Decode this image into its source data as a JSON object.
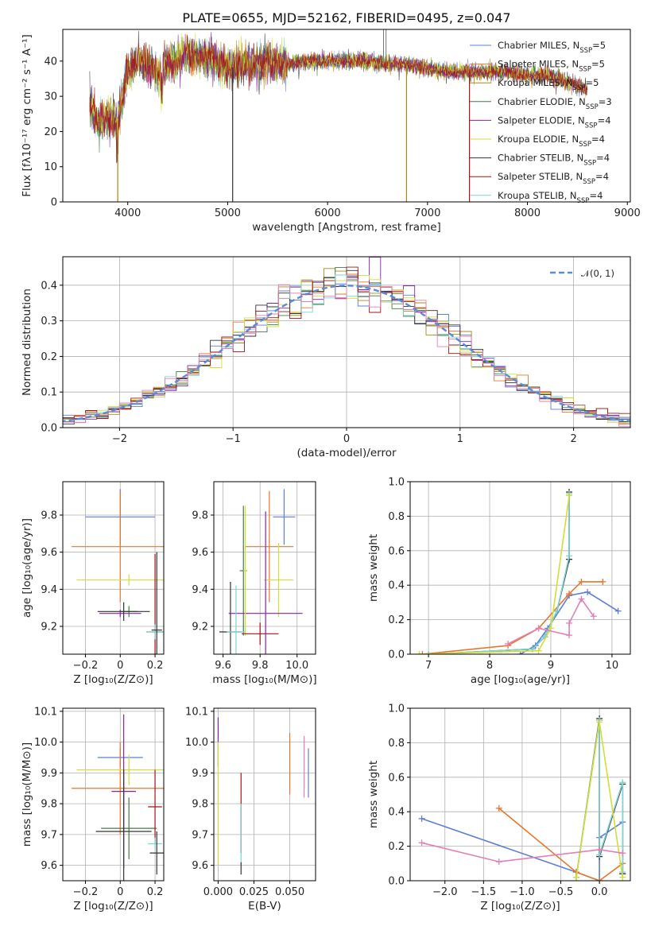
{
  "colors": [
    "#5b7fd8",
    "#e8762a",
    "#a68914",
    "#3f7d3f",
    "#8b1fb5",
    "#d2de38",
    "#333333",
    "#a31414",
    "#7ed3d3"
  ],
  "chart_data": [
    {
      "type": "line",
      "title": "PLATE=0655, MJD=52162, FIBERID=0495, z=0.047",
      "xlabel": "wavelength [Angstrom, rest frame]",
      "ylabel": "Flux [fλ10⁻¹⁷ erg cm⁻² s⁻¹ A⁻¹]",
      "xlim": [
        3350,
        9030
      ],
      "ylim": [
        0,
        49
      ],
      "xticks": [
        4000,
        5000,
        6000,
        7000,
        8000,
        9000
      ],
      "yticks": [
        0,
        10,
        20,
        30,
        40
      ],
      "legend_position": "top-right",
      "grid": false,
      "series": [
        {
          "name": "Chabrier MILES, N_SSP=5"
        },
        {
          "name": "Salpeter MILES, N_SSP=5"
        },
        {
          "name": "Kroupa MILES, N_SSP=5"
        },
        {
          "name": "Chabrier ELODIE, N_SSP=3"
        },
        {
          "name": "Salpeter ELODIE, N_SSP=4"
        },
        {
          "name": "Kroupa ELODIE, N_SSP=4"
        },
        {
          "name": "Chabrier STELIB, N_SSP=4"
        },
        {
          "name": "Salpeter STELIB, N_SSP=4"
        },
        {
          "name": "Kroupa STELIB, N_SSP=4"
        }
      ],
      "continuum": {
        "x": [
          3620,
          3700,
          3800,
          3900,
          3950,
          4000,
          4100,
          4200,
          4300,
          4400,
          4500,
          4600,
          4700,
          4800,
          4900,
          5000,
          5200,
          5400,
          5600,
          5800,
          6000,
          6200,
          6400,
          6600,
          6800,
          7000,
          7200,
          7400,
          7600,
          7800,
          8000,
          8200,
          8400,
          8600
        ],
        "y": [
          27,
          23,
          24,
          23,
          30,
          37,
          40,
          39,
          36,
          39,
          40,
          42,
          41,
          41,
          40,
          38,
          39,
          40,
          39,
          40,
          40,
          40,
          40,
          39,
          39,
          38,
          37,
          37,
          37,
          37,
          36,
          36,
          34,
          32
        ]
      },
      "drops": [
        {
          "x": 3900,
          "y": 0
        },
        {
          "x": 5050,
          "y": 0
        },
        {
          "x": 6790,
          "y": 0
        },
        {
          "x": 7420,
          "y": 0
        }
      ],
      "spikes": [
        {
          "x": 6560,
          "y": 49
        },
        {
          "x": 6585,
          "y": 49
        }
      ]
    },
    {
      "type": "bar",
      "xlabel": "(data-model)/error",
      "ylabel": "Normed distribution",
      "xlim": [
        -2.5,
        2.5
      ],
      "ylim": [
        0,
        0.48
      ],
      "xticks": [
        -2,
        -1,
        0,
        1,
        2
      ],
      "yticks": [
        0.0,
        0.1,
        0.2,
        0.3,
        0.4
      ],
      "legend_position": "top-right",
      "legend": "𝒩(0, 1)",
      "grid": true,
      "bin_width": 0.1,
      "histogram_peak": 0.4
    },
    {
      "type": "scatter",
      "xlabel": "Z [log₁₀(Z/Z⊙)]",
      "ylabel": "age  [log₁₀(age/yr)]",
      "xlim": [
        -0.33,
        0.25
      ],
      "ylim": [
        9.05,
        9.98
      ],
      "xticks": [
        -0.2,
        0.0,
        0.2
      ],
      "yticks": [
        9.2,
        9.4,
        9.6,
        9.8
      ],
      "grid": true,
      "points": [
        {
          "x": 0.0,
          "y": 9.79,
          "xerr": 0.2,
          "yerr": 0.15,
          "c": 0
        },
        {
          "x": 0.0,
          "y": 9.63,
          "xerr": 0.28,
          "yerr": 0.3,
          "c": 1
        },
        {
          "x": 0.05,
          "y": 9.45,
          "xerr": 0.3,
          "yerr": 0.03,
          "c": 5
        },
        {
          "x": 0.05,
          "y": 9.28,
          "xerr": 0.05,
          "yerr": 0.03,
          "c": 3
        },
        {
          "x": 0.0,
          "y": 9.27,
          "xerr": 0.12,
          "yerr": 0.02,
          "c": 4
        },
        {
          "x": 0.02,
          "y": 9.28,
          "xerr": 0.15,
          "yerr": 0.05,
          "c": 6
        },
        {
          "x": 0.2,
          "y": 9.17,
          "xerr": 0.05,
          "yerr": 0.42,
          "c": 7
        },
        {
          "x": 0.2,
          "y": 9.17,
          "xerr": 0.05,
          "yerr": 0.04,
          "c": 8
        },
        {
          "x": 0.21,
          "y": 9.18,
          "xerr": 0.03,
          "yerr": 0.42,
          "c": 6
        }
      ]
    },
    {
      "type": "scatter",
      "xlabel": "mass [log₁₀(M/M⊙)]",
      "ylabel": "",
      "xlim": [
        9.55,
        10.1
      ],
      "ylim": [
        9.05,
        9.98
      ],
      "xticks": [
        9.6,
        9.8,
        10.0
      ],
      "yticks": [
        9.2,
        9.4,
        9.6,
        9.8
      ],
      "grid": true,
      "points": [
        {
          "x": 9.93,
          "y": 9.79,
          "xerr": 0.06,
          "yerr": 0.15,
          "c": 0
        },
        {
          "x": 9.85,
          "y": 9.63,
          "xerr": 0.13,
          "yerr": 0.3,
          "c": 1
        },
        {
          "x": 9.9,
          "y": 9.45,
          "xerr": 0.08,
          "yerr": 0.2,
          "c": 5
        },
        {
          "x": 9.71,
          "y": 9.5,
          "xerr": 0.02,
          "yerr": 0.35,
          "c": 3
        },
        {
          "x": 9.83,
          "y": 9.27,
          "xerr": 0.2,
          "yerr": 0.55,
          "c": 4
        },
        {
          "x": 9.72,
          "y": 9.5,
          "xerr": 0.01,
          "yerr": 0.35,
          "c": 5
        },
        {
          "x": 9.64,
          "y": 9.17,
          "xerr": 0.06,
          "yerr": 0.27,
          "c": 6
        },
        {
          "x": 9.8,
          "y": 9.16,
          "xerr": 0.1,
          "yerr": 0.06,
          "c": 7
        },
        {
          "x": 9.67,
          "y": 9.17,
          "xerr": 0.05,
          "yerr": 0.25,
          "c": 8
        }
      ]
    },
    {
      "type": "line",
      "xlabel": "age  [log₁₀(age/yr)]",
      "ylabel": "mass weight",
      "xlim": [
        6.7,
        10.3
      ],
      "ylim": [
        0,
        1.0
      ],
      "xticks": [
        7,
        8,
        9,
        10
      ],
      "yticks": [
        0.0,
        0.2,
        0.4,
        0.6,
        0.8,
        1.0
      ],
      "grid": true,
      "series": [
        {
          "c": 0,
          "x": [
            8.5,
            8.75,
            8.95,
            9.3,
            9.6,
            10.1
          ],
          "y": [
            0.0,
            0.05,
            0.15,
            0.34,
            0.36,
            0.25
          ]
        },
        {
          "c": 1,
          "x": [
            6.9,
            8.3,
            8.8,
            9.3,
            9.5,
            9.85
          ],
          "y": [
            0.0,
            0.05,
            0.15,
            0.35,
            0.42,
            0.42
          ]
        },
        {
          "c": 6,
          "x": [
            7.0,
            8.7,
            8.9,
            9.1,
            9.3,
            9.3
          ],
          "y": [
            0.0,
            0.03,
            0.1,
            0.25,
            0.55,
            0.94
          ]
        },
        {
          "c": 8,
          "x": [
            7.0,
            8.7,
            8.9,
            9.1,
            9.3,
            9.3
          ],
          "y": [
            0.0,
            0.03,
            0.1,
            0.25,
            0.57,
            0.93
          ]
        },
        {
          "c": 5,
          "x": [
            6.85,
            8.8,
            9.0,
            9.3
          ],
          "y": [
            0.0,
            0.02,
            0.15,
            0.92
          ]
        },
        {
          "c": 9,
          "x": [
            8.3,
            8.8,
            9.3,
            9.3,
            9.5,
            9.7
          ],
          "y": [
            0.06,
            0.15,
            0.11,
            0.18,
            0.32,
            0.22
          ]
        }
      ]
    },
    {
      "type": "scatter",
      "xlabel": "Z [log₁₀(Z/Z⊙)]",
      "ylabel": "mass [log₁₀(M/M⊙)]",
      "xlim": [
        -0.33,
        0.25
      ],
      "ylim": [
        9.55,
        10.11
      ],
      "xticks": [
        -0.2,
        0.0,
        0.2
      ],
      "yticks": [
        9.6,
        9.7,
        9.8,
        9.9,
        10.0,
        10.1
      ],
      "grid": true,
      "points": [
        {
          "x": 0.0,
          "y": 9.95,
          "xerr": 0.13,
          "yerr": 0.03,
          "c": 0
        },
        {
          "x": 0.0,
          "y": 9.85,
          "xerr": 0.28,
          "yerr": 0.15,
          "c": 1
        },
        {
          "x": 0.05,
          "y": 9.91,
          "xerr": 0.3,
          "yerr": 0.05,
          "c": 5
        },
        {
          "x": 0.05,
          "y": 9.72,
          "xerr": 0.16,
          "yerr": 0.1,
          "c": 3
        },
        {
          "x": 0.02,
          "y": 9.84,
          "xerr": 0.07,
          "yerr": 0.25,
          "c": 4
        },
        {
          "x": 0.02,
          "y": 9.71,
          "xerr": 0.16,
          "yerr": 0.2,
          "c": 6
        },
        {
          "x": 0.2,
          "y": 9.79,
          "xerr": 0.04,
          "yerr": 0.12,
          "c": 7
        },
        {
          "x": 0.2,
          "y": 9.67,
          "xerr": 0.04,
          "yerr": 0.02,
          "c": 8
        },
        {
          "x": 0.21,
          "y": 9.64,
          "xerr": 0.04,
          "yerr": 0.07,
          "c": 6
        }
      ]
    },
    {
      "type": "scatter",
      "xlabel": "E(B-V)",
      "ylabel": "",
      "xlim": [
        -0.003,
        0.068
      ],
      "ylim": [
        9.55,
        10.11
      ],
      "xticks": [
        0.0,
        0.025,
        0.05
      ],
      "yticks": [
        9.6,
        9.7,
        9.8,
        9.9,
        10.0,
        10.1
      ],
      "grid": true,
      "points": [
        {
          "x": 0.0,
          "y": 10.0,
          "yerr": 0.08,
          "c": 4
        },
        {
          "x": 0.0,
          "y": 9.8,
          "yerr": 0.2,
          "c": 5
        },
        {
          "x": 0.016,
          "y": 9.77,
          "yerr": 0.13,
          "c": 7
        },
        {
          "x": 0.016,
          "y": 9.7,
          "yerr": 0.1,
          "c": 8
        },
        {
          "x": 0.016,
          "y": 9.59,
          "yerr": 0.02,
          "c": 6
        },
        {
          "x": 0.05,
          "y": 9.93,
          "yerr": 0.1,
          "c": 1
        },
        {
          "x": 0.06,
          "y": 9.92,
          "yerr": 0.1,
          "c": 9
        },
        {
          "x": 0.063,
          "y": 9.9,
          "yerr": 0.08,
          "c": 0
        }
      ]
    },
    {
      "type": "line",
      "xlabel": "Z [log₁₀(Z/Z⊙)]",
      "ylabel": "mass weight",
      "xlim": [
        -2.45,
        0.4
      ],
      "ylim": [
        0,
        1.0
      ],
      "xticks": [
        -2.0,
        -1.5,
        -1.0,
        -0.5,
        0.0
      ],
      "yticks": [
        0.0,
        0.2,
        0.4,
        0.6,
        0.8,
        1.0
      ],
      "grid": true,
      "series": [
        {
          "c": 0,
          "x": [
            -2.3,
            -0.3,
            0.0,
            0.0,
            0.3,
            0.3
          ],
          "y": [
            0.36,
            0.05,
            0.0,
            0.25,
            0.34,
            0.04
          ]
        },
        {
          "c": 1,
          "x": [
            -1.3,
            -0.3,
            0.0,
            0.3
          ],
          "y": [
            0.42,
            0.05,
            0.0,
            0.1
          ]
        },
        {
          "c": 6,
          "x": [
            -0.3,
            0.0,
            0.0,
            0.3,
            0.3
          ],
          "y": [
            0.02,
            0.94,
            0.14,
            0.56,
            0.04
          ]
        },
        {
          "c": 8,
          "x": [
            -0.3,
            0.0,
            0.0,
            0.3,
            0.3
          ],
          "y": [
            0.02,
            0.93,
            0.15,
            0.57,
            0.05
          ]
        },
        {
          "c": 5,
          "x": [
            -0.3,
            0.0,
            0.3
          ],
          "y": [
            0.02,
            0.92,
            0.02
          ]
        },
        {
          "c": 9,
          "x": [
            -2.3,
            -1.3,
            0.0,
            0.3
          ],
          "y": [
            0.22,
            0.11,
            0.18,
            0.16
          ]
        }
      ]
    }
  ]
}
